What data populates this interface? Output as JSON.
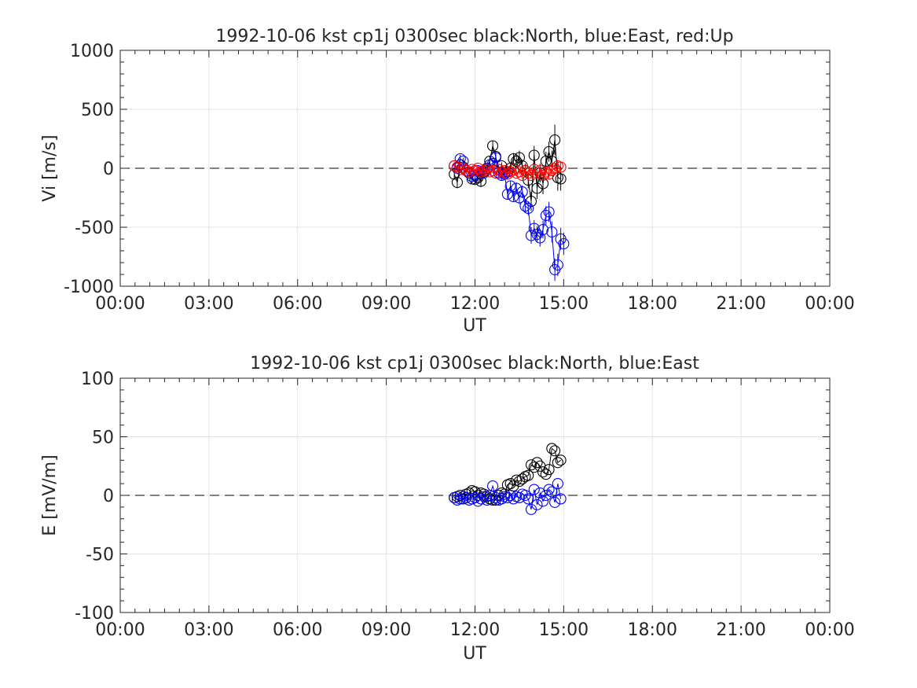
{
  "chart_data": [
    {
      "type": "scatter",
      "title": "1992-10-06 kst cp1j 0300sec black:North, blue:East, red:Up",
      "xlabel": "UT",
      "ylabel": "Vi [m/s]",
      "xlim": [
        0,
        24
      ],
      "ylim": [
        -1000,
        1000
      ],
      "x_ticks": [
        0,
        3,
        6,
        9,
        12,
        15,
        18,
        21,
        24
      ],
      "x_tick_labels": [
        "00:00",
        "03:00",
        "06:00",
        "09:00",
        "12:00",
        "15:00",
        "18:00",
        "21:00",
        "00:00"
      ],
      "y_ticks": [
        -1000,
        -500,
        0,
        500,
        1000
      ],
      "y_tick_labels": [
        "-1000",
        "-500",
        "0",
        "500",
        "1000"
      ],
      "grid": true,
      "zero_line": "dashed",
      "series": [
        {
          "color": "#000000",
          "points": [
            [
              11.3,
              -50,
              45
            ],
            [
              11.4,
              -120,
              50
            ],
            [
              11.5,
              30,
              35
            ],
            [
              11.6,
              10,
              30
            ],
            [
              11.7,
              -20,
              30
            ],
            [
              11.8,
              -40,
              35
            ],
            [
              11.9,
              -90,
              40
            ],
            [
              12.0,
              -95,
              40
            ],
            [
              12.1,
              -80,
              45
            ],
            [
              12.2,
              -110,
              50
            ],
            [
              12.3,
              -30,
              35
            ],
            [
              12.4,
              0,
              30
            ],
            [
              12.5,
              60,
              40
            ],
            [
              12.6,
              190,
              45
            ],
            [
              12.7,
              100,
              45
            ],
            [
              12.8,
              -10,
              35
            ],
            [
              12.9,
              20,
              30
            ],
            [
              13.0,
              -40,
              35
            ],
            [
              13.1,
              -30,
              35
            ],
            [
              13.2,
              0,
              40
            ],
            [
              13.3,
              80,
              50
            ],
            [
              13.4,
              60,
              55
            ],
            [
              13.5,
              90,
              60
            ],
            [
              13.6,
              20,
              55
            ],
            [
              13.7,
              -20,
              60
            ],
            [
              13.8,
              -100,
              70
            ],
            [
              13.9,
              -280,
              80
            ],
            [
              14.0,
              110,
              80
            ],
            [
              14.1,
              -170,
              90
            ],
            [
              14.2,
              -40,
              80
            ],
            [
              14.3,
              -130,
              90
            ],
            [
              14.4,
              60,
              80
            ],
            [
              14.5,
              140,
              85
            ],
            [
              14.6,
              60,
              90
            ],
            [
              14.7,
              240,
              130
            ],
            [
              14.8,
              -80,
              110
            ],
            [
              14.9,
              -90,
              100
            ]
          ]
        },
        {
          "color": "#0000ff",
          "points": [
            [
              11.3,
              20,
              30
            ],
            [
              11.4,
              0,
              30
            ],
            [
              11.5,
              80,
              35
            ],
            [
              11.6,
              60,
              30
            ],
            [
              11.7,
              -20,
              30
            ],
            [
              11.8,
              -30,
              30
            ],
            [
              11.9,
              -70,
              35
            ],
            [
              12.0,
              -60,
              35
            ],
            [
              12.1,
              -20,
              35
            ],
            [
              12.2,
              -30,
              35
            ],
            [
              12.3,
              -40,
              35
            ],
            [
              12.4,
              -10,
              35
            ],
            [
              12.5,
              30,
              40
            ],
            [
              12.6,
              40,
              40
            ],
            [
              12.7,
              90,
              40
            ],
            [
              12.8,
              -40,
              40
            ],
            [
              12.9,
              -60,
              40
            ],
            [
              13.0,
              -50,
              40
            ],
            [
              13.1,
              -220,
              45
            ],
            [
              13.2,
              -150,
              45
            ],
            [
              13.3,
              -240,
              45
            ],
            [
              13.4,
              -170,
              50
            ],
            [
              13.5,
              -250,
              55
            ],
            [
              13.6,
              -200,
              55
            ],
            [
              13.7,
              -320,
              60
            ],
            [
              13.8,
              -340,
              60
            ],
            [
              13.9,
              -570,
              70
            ],
            [
              14.0,
              -510,
              70
            ],
            [
              14.1,
              -560,
              70
            ],
            [
              14.2,
              -590,
              75
            ],
            [
              14.3,
              -520,
              75
            ],
            [
              14.4,
              -400,
              80
            ],
            [
              14.5,
              -370,
              85
            ],
            [
              14.6,
              -540,
              90
            ],
            [
              14.7,
              -860,
              95
            ],
            [
              14.8,
              -820,
              95
            ],
            [
              14.9,
              -600,
              95
            ],
            [
              15.0,
              -640,
              95
            ]
          ]
        },
        {
          "color": "#ff0000",
          "points": [
            [
              11.3,
              20,
              20
            ],
            [
              11.4,
              10,
              20
            ],
            [
              11.5,
              -10,
              20
            ],
            [
              11.6,
              0,
              20
            ],
            [
              11.7,
              -20,
              20
            ],
            [
              11.8,
              -30,
              20
            ],
            [
              11.9,
              -10,
              20
            ],
            [
              12.0,
              -20,
              20
            ],
            [
              12.1,
              0,
              20
            ],
            [
              12.2,
              -30,
              20
            ],
            [
              12.3,
              -20,
              20
            ],
            [
              12.4,
              -10,
              20
            ],
            [
              12.5,
              -30,
              20
            ],
            [
              12.6,
              -20,
              20
            ],
            [
              12.7,
              -40,
              20
            ],
            [
              12.8,
              -10,
              20
            ],
            [
              12.9,
              -30,
              20
            ],
            [
              13.0,
              -20,
              20
            ],
            [
              13.1,
              -50,
              25
            ],
            [
              13.2,
              -30,
              25
            ],
            [
              13.3,
              -10,
              25
            ],
            [
              13.4,
              -40,
              25
            ],
            [
              13.5,
              -30,
              25
            ],
            [
              13.6,
              -60,
              30
            ],
            [
              13.7,
              -20,
              30
            ],
            [
              13.8,
              -40,
              30
            ],
            [
              13.9,
              -60,
              30
            ],
            [
              14.0,
              -10,
              30
            ],
            [
              14.1,
              -40,
              35
            ],
            [
              14.2,
              -20,
              35
            ],
            [
              14.3,
              -60,
              35
            ],
            [
              14.4,
              -30,
              35
            ],
            [
              14.5,
              -50,
              40
            ],
            [
              14.6,
              -20,
              40
            ],
            [
              14.7,
              0,
              40
            ],
            [
              14.8,
              20,
              40
            ],
            [
              14.9,
              10,
              40
            ]
          ]
        }
      ]
    },
    {
      "type": "scatter",
      "title": "1992-10-06 kst cp1j 0300sec black:North, blue:East",
      "xlabel": "UT",
      "ylabel": "E [mV/m]",
      "xlim": [
        0,
        24
      ],
      "ylim": [
        -100,
        100
      ],
      "x_ticks": [
        0,
        3,
        6,
        9,
        12,
        15,
        18,
        21,
        24
      ],
      "x_tick_labels": [
        "00:00",
        "03:00",
        "06:00",
        "09:00",
        "12:00",
        "15:00",
        "18:00",
        "21:00",
        "00:00"
      ],
      "y_ticks": [
        -100,
        -50,
        0,
        50,
        100
      ],
      "y_tick_labels": [
        "-100",
        "-50",
        "0",
        "50",
        "100"
      ],
      "grid": true,
      "zero_line": "dashed",
      "series": [
        {
          "color": "#000000",
          "points": [
            [
              11.3,
              -2
            ],
            [
              11.4,
              -1
            ],
            [
              11.5,
              0
            ],
            [
              11.6,
              -3
            ],
            [
              11.7,
              1
            ],
            [
              11.8,
              2
            ],
            [
              11.9,
              4
            ],
            [
              12.0,
              3
            ],
            [
              12.1,
              0
            ],
            [
              12.2,
              2
            ],
            [
              12.3,
              1
            ],
            [
              12.4,
              -1
            ],
            [
              12.5,
              -3
            ],
            [
              12.6,
              -4
            ],
            [
              12.7,
              -4
            ],
            [
              12.8,
              0
            ],
            [
              12.9,
              2
            ],
            [
              13.0,
              1
            ],
            [
              13.1,
              9
            ],
            [
              13.2,
              10
            ],
            [
              13.3,
              8
            ],
            [
              13.4,
              13
            ],
            [
              13.5,
              12
            ],
            [
              13.6,
              14
            ],
            [
              13.7,
              16
            ],
            [
              13.8,
              17
            ],
            [
              13.9,
              26
            ],
            [
              14.0,
              24
            ],
            [
              14.1,
              28
            ],
            [
              14.2,
              25
            ],
            [
              14.3,
              20
            ],
            [
              14.4,
              18
            ],
            [
              14.5,
              22
            ],
            [
              14.6,
              40
            ],
            [
              14.7,
              38
            ],
            [
              14.8,
              28
            ],
            [
              14.9,
              30
            ]
          ]
        },
        {
          "color": "#0000ff",
          "points": [
            [
              11.3,
              -2
            ],
            [
              11.4,
              -4
            ],
            [
              11.5,
              -3
            ],
            [
              11.6,
              -1
            ],
            [
              11.7,
              -2
            ],
            [
              11.8,
              -4
            ],
            [
              11.9,
              -3
            ],
            [
              12.0,
              -2
            ],
            [
              12.1,
              -5
            ],
            [
              12.2,
              -3
            ],
            [
              12.3,
              -1
            ],
            [
              12.4,
              -4
            ],
            [
              12.5,
              0
            ],
            [
              12.6,
              8
            ],
            [
              12.7,
              -2
            ],
            [
              12.8,
              -4
            ],
            [
              12.9,
              -3
            ],
            [
              13.0,
              -1
            ],
            [
              13.1,
              -2
            ],
            [
              13.2,
              0
            ],
            [
              13.3,
              -3
            ],
            [
              13.4,
              -1
            ],
            [
              13.5,
              -2
            ],
            [
              13.6,
              1
            ],
            [
              13.7,
              0
            ],
            [
              13.8,
              -3
            ],
            [
              13.9,
              -12
            ],
            [
              14.0,
              5
            ],
            [
              14.1,
              -8
            ],
            [
              14.2,
              2
            ],
            [
              14.3,
              -5
            ],
            [
              14.4,
              0
            ],
            [
              14.5,
              5
            ],
            [
              14.6,
              3
            ],
            [
              14.7,
              -6
            ],
            [
              14.8,
              10
            ],
            [
              14.9,
              -3
            ]
          ]
        }
      ]
    }
  ]
}
